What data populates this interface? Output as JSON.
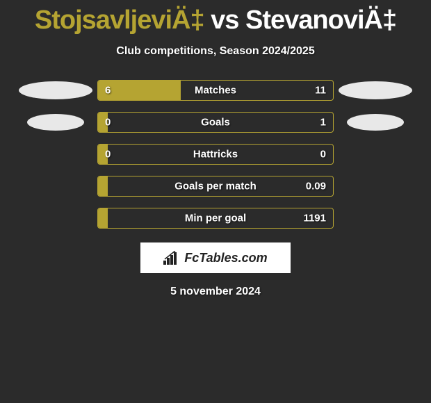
{
  "title": {
    "player1": "StojsavljeviÄ‡",
    "vs": "vs",
    "player2": "StevanoviÄ‡",
    "player1_color": "#b5a432",
    "vs_color": "#ffffff",
    "player2_color": "#ffffff"
  },
  "subtitle": "Club competitions, Season 2024/2025",
  "background_color": "#2b2b2b",
  "bar_border_color": "#b5a432",
  "bar_fill_color": "#b5a432",
  "rows": [
    {
      "label": "Matches",
      "left_value": "6",
      "right_value": "11",
      "fill_percent": 35.3,
      "left_ellipse_w": 106,
      "left_ellipse_h": 26,
      "right_ellipse_w": 106,
      "right_ellipse_h": 26
    },
    {
      "label": "Goals",
      "left_value": "0",
      "right_value": "1",
      "fill_percent": 4,
      "left_ellipse_w": 82,
      "left_ellipse_h": 24,
      "right_ellipse_w": 82,
      "right_ellipse_h": 24
    },
    {
      "label": "Hattricks",
      "left_value": "0",
      "right_value": "0",
      "fill_percent": 4,
      "left_ellipse_w": 0,
      "left_ellipse_h": 0,
      "right_ellipse_w": 0,
      "right_ellipse_h": 0
    },
    {
      "label": "Goals per match",
      "left_value": "",
      "right_value": "0.09",
      "fill_percent": 4,
      "left_ellipse_w": 0,
      "left_ellipse_h": 0,
      "right_ellipse_w": 0,
      "right_ellipse_h": 0
    },
    {
      "label": "Min per goal",
      "left_value": "",
      "right_value": "1191",
      "fill_percent": 4,
      "left_ellipse_w": 0,
      "left_ellipse_h": 0,
      "right_ellipse_w": 0,
      "right_ellipse_h": 0
    }
  ],
  "logo_text": "FcTables.com",
  "date": "5 november 2024"
}
